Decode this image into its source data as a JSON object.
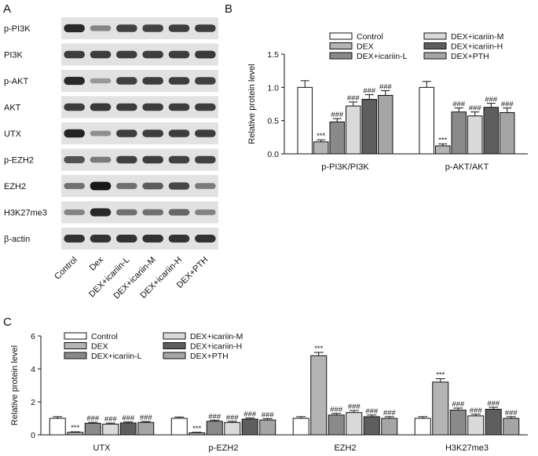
{
  "panels": {
    "a": "A",
    "b": "B",
    "c": "C"
  },
  "western_blot": {
    "row_labels": [
      "p-PI3K",
      "PI3K",
      "p-AKT",
      "AKT",
      "UTX",
      "p-EZH2",
      "EZH2",
      "H3K27me3",
      "β-actin"
    ],
    "lane_labels": [
      "Control",
      "Dex",
      "DEX+icariin-L",
      "DEX+icariin-M",
      "DEX+icariin-H",
      "DEX+PTH"
    ],
    "band_intensity": [
      [
        0.9,
        0.45,
        0.78,
        0.78,
        0.8,
        0.8
      ],
      [
        0.8,
        0.8,
        0.8,
        0.8,
        0.8,
        0.82
      ],
      [
        0.9,
        0.35,
        0.78,
        0.8,
        0.8,
        0.78
      ],
      [
        0.8,
        0.82,
        0.8,
        0.8,
        0.8,
        0.8
      ],
      [
        0.92,
        0.4,
        0.8,
        0.8,
        0.8,
        0.8
      ],
      [
        0.7,
        0.5,
        0.78,
        0.8,
        0.78,
        0.78
      ],
      [
        0.55,
        0.98,
        0.55,
        0.65,
        0.75,
        0.5
      ],
      [
        0.45,
        0.9,
        0.55,
        0.55,
        0.6,
        0.45
      ],
      [
        0.85,
        0.85,
        0.85,
        0.85,
        0.85,
        0.85
      ]
    ]
  },
  "series_colors": [
    "#ffffff",
    "#b4b4b4",
    "#8a8a8a",
    "#dadada",
    "#5e5e5e",
    "#a5a5a5"
  ],
  "chart_data": [
    {
      "type": "bar",
      "panel": "B",
      "ylabel": "Relative protein level",
      "ylim": [
        0,
        1.5
      ],
      "yticks": [
        "0.0",
        "0.5",
        "1.0",
        "1.5"
      ],
      "categories": [
        "p-PI3K/PI3K",
        "p-AKT/AKT"
      ],
      "legend": "top",
      "series": [
        {
          "name": "Control",
          "values": [
            1.0,
            1.0
          ],
          "errors": [
            0.1,
            0.09
          ],
          "annotations": [
            "",
            ""
          ]
        },
        {
          "name": "DEX",
          "values": [
            0.18,
            0.12
          ],
          "errors": [
            0.03,
            0.03
          ],
          "annotations": [
            "***",
            "***"
          ]
        },
        {
          "name": "DEX+icariin-L",
          "values": [
            0.48,
            0.63
          ],
          "errors": [
            0.05,
            0.06
          ],
          "annotations": [
            "###",
            "###"
          ]
        },
        {
          "name": "DEX+icariin-M",
          "values": [
            0.72,
            0.57
          ],
          "errors": [
            0.06,
            0.06
          ],
          "annotations": [
            "###",
            "###"
          ]
        },
        {
          "name": "DEX+icariin-H",
          "values": [
            0.82,
            0.7
          ],
          "errors": [
            0.07,
            0.06
          ],
          "annotations": [
            "###",
            "###"
          ]
        },
        {
          "name": "DEX+PTH",
          "values": [
            0.88,
            0.62
          ],
          "errors": [
            0.07,
            0.07
          ],
          "annotations": [
            "###",
            "###"
          ]
        }
      ]
    },
    {
      "type": "bar",
      "panel": "C",
      "ylabel": "Relative protein level",
      "ylim": [
        0,
        6
      ],
      "yticks": [
        "0",
        "2",
        "4",
        "6"
      ],
      "categories": [
        "UTX",
        "p-EZH2",
        "EZH2",
        "H3K27me3"
      ],
      "legend": "top-left",
      "series": [
        {
          "name": "Control",
          "values": [
            1.0,
            1.0,
            1.0,
            1.0
          ],
          "errors": [
            0.1,
            0.08,
            0.1,
            0.1
          ],
          "annotations": [
            "",
            "",
            "",
            ""
          ]
        },
        {
          "name": "DEX",
          "values": [
            0.15,
            0.12,
            4.8,
            3.2
          ],
          "errors": [
            0.03,
            0.03,
            0.2,
            0.2
          ],
          "annotations": [
            "***",
            "***",
            "***",
            "***"
          ]
        },
        {
          "name": "DEX+icariin-L",
          "values": [
            0.7,
            0.82,
            1.2,
            1.5
          ],
          "errors": [
            0.06,
            0.07,
            0.1,
            0.12
          ],
          "annotations": [
            "###",
            "###",
            "###",
            "###"
          ]
        },
        {
          "name": "DEX+icariin-M",
          "values": [
            0.65,
            0.75,
            1.35,
            1.15
          ],
          "errors": [
            0.06,
            0.07,
            0.12,
            0.1
          ],
          "annotations": [
            "###",
            "###",
            "###",
            "###"
          ]
        },
        {
          "name": "DEX+icariin-H",
          "values": [
            0.72,
            0.95,
            1.1,
            1.55
          ],
          "errors": [
            0.06,
            0.07,
            0.1,
            0.12
          ],
          "annotations": [
            "###",
            "###",
            "###",
            "###"
          ]
        },
        {
          "name": "DEX+PTH",
          "values": [
            0.75,
            0.9,
            1.0,
            1.0
          ],
          "errors": [
            0.06,
            0.08,
            0.1,
            0.1
          ],
          "annotations": [
            "###",
            "###",
            "###",
            "###"
          ]
        }
      ]
    }
  ]
}
